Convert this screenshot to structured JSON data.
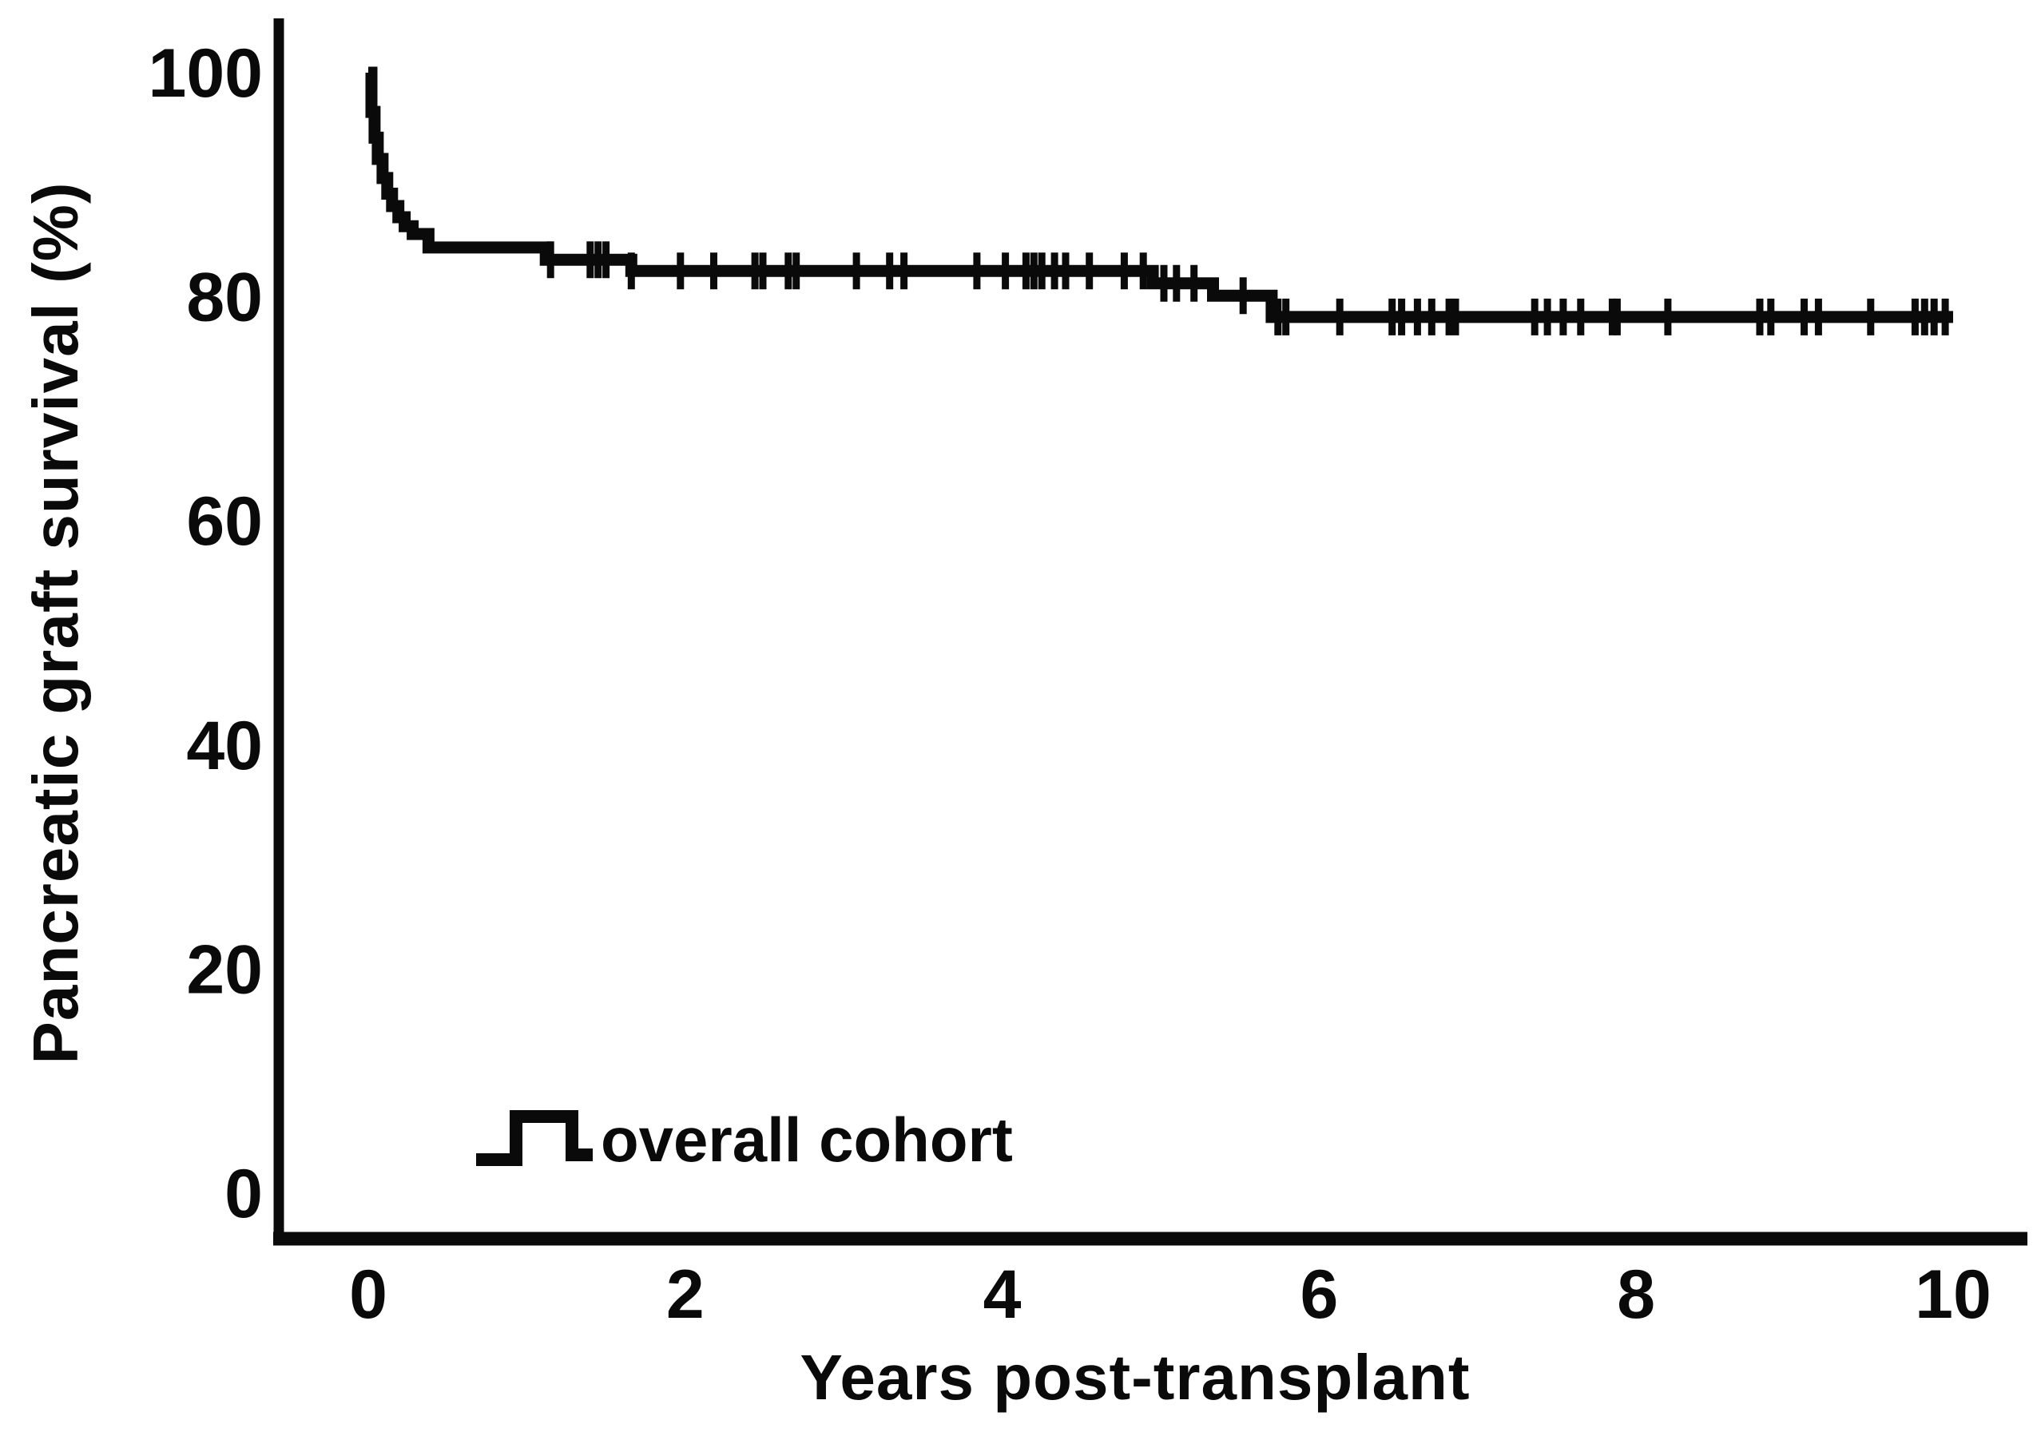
{
  "figure": {
    "background": "#ffffff",
    "ink_color": "#0a0a0a"
  },
  "chart_data": {
    "type": "line",
    "subtype": "kaplan-meier-step",
    "title": "",
    "xlabel": "Years post-transplant",
    "ylabel": "Pancreatic graft survival (%)",
    "xlim": [
      0,
      10
    ],
    "ylim": [
      0,
      100
    ],
    "x_ticks": [
      0,
      2,
      4,
      6,
      8,
      10
    ],
    "y_ticks": [
      0,
      20,
      40,
      60,
      80,
      100
    ],
    "grid": false,
    "legend": {
      "position": "inside-bottom-left",
      "entries": [
        "overall cohort"
      ]
    },
    "series": [
      {
        "name": "overall cohort",
        "color": "#0a0a0a",
        "x_end": 10.0,
        "step_points": [
          [
            0.0,
            100.0
          ],
          [
            0.02,
            96.5
          ],
          [
            0.04,
            94.2
          ],
          [
            0.06,
            92.3
          ],
          [
            0.09,
            90.6
          ],
          [
            0.12,
            89.2
          ],
          [
            0.15,
            88.1
          ],
          [
            0.19,
            87.1
          ],
          [
            0.23,
            86.3
          ],
          [
            0.28,
            85.6
          ],
          [
            0.38,
            84.4
          ],
          [
            1.12,
            83.3
          ],
          [
            1.66,
            82.3
          ],
          [
            4.95,
            81.2
          ],
          [
            5.33,
            80.1
          ],
          [
            5.7,
            78.2
          ]
        ],
        "censor_marks": [
          [
            1.15,
            83.3
          ],
          [
            1.4,
            83.3
          ],
          [
            1.45,
            83.3
          ],
          [
            1.5,
            83.3
          ],
          [
            1.66,
            82.3
          ],
          [
            1.97,
            82.3
          ],
          [
            2.18,
            82.3
          ],
          [
            2.44,
            82.3
          ],
          [
            2.49,
            82.3
          ],
          [
            2.65,
            82.3
          ],
          [
            2.7,
            82.3
          ],
          [
            3.08,
            82.3
          ],
          [
            3.29,
            82.3
          ],
          [
            3.38,
            82.3
          ],
          [
            3.84,
            82.3
          ],
          [
            4.02,
            82.3
          ],
          [
            4.15,
            82.3
          ],
          [
            4.2,
            82.3
          ],
          [
            4.25,
            82.3
          ],
          [
            4.33,
            82.3
          ],
          [
            4.4,
            82.3
          ],
          [
            4.55,
            82.3
          ],
          [
            4.77,
            82.3
          ],
          [
            4.89,
            82.3
          ],
          [
            5.02,
            81.2
          ],
          [
            5.1,
            81.2
          ],
          [
            5.21,
            81.2
          ],
          [
            5.52,
            80.1
          ],
          [
            5.74,
            78.2
          ],
          [
            5.79,
            78.2
          ],
          [
            6.13,
            78.2
          ],
          [
            6.46,
            78.2
          ],
          [
            6.52,
            78.2
          ],
          [
            6.62,
            78.2
          ],
          [
            6.71,
            78.2
          ],
          [
            6.82,
            78.2
          ],
          [
            6.86,
            78.2
          ],
          [
            7.36,
            78.2
          ],
          [
            7.44,
            78.2
          ],
          [
            7.54,
            78.2
          ],
          [
            7.65,
            78.2
          ],
          [
            7.85,
            78.2
          ],
          [
            7.88,
            78.2
          ],
          [
            8.2,
            78.2
          ],
          [
            8.78,
            78.2
          ],
          [
            8.85,
            78.2
          ],
          [
            9.06,
            78.2
          ],
          [
            9.15,
            78.2
          ],
          [
            9.48,
            78.2
          ],
          [
            9.76,
            78.2
          ],
          [
            9.82,
            78.2
          ],
          [
            9.88,
            78.2
          ],
          [
            9.95,
            78.2
          ]
        ]
      }
    ]
  }
}
